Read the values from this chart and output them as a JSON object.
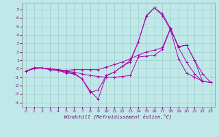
{
  "xlabel": "Windchill (Refroidissement éolien,°C)",
  "background_color": "#c0e8e8",
  "grid_color": "#a0cccc",
  "line_color": "#aa00aa",
  "ylim": [
    -4.5,
    7.8
  ],
  "xlim": [
    -0.5,
    23.5
  ],
  "yticks": [
    -4,
    -3,
    -2,
    -1,
    0,
    1,
    2,
    3,
    4,
    5,
    6,
    7
  ],
  "xticks": [
    0,
    1,
    2,
    3,
    4,
    5,
    6,
    7,
    8,
    9,
    10,
    11,
    12,
    13,
    14,
    15,
    16,
    17,
    18,
    19,
    20,
    21,
    22,
    23
  ],
  "lines": [
    {
      "x": [
        0,
        1,
        2,
        3,
        4,
        5,
        6,
        7,
        8,
        9,
        10,
        11,
        12,
        13,
        14,
        15,
        16,
        17,
        18,
        19,
        20,
        21,
        22,
        23
      ],
      "y": [
        -0.3,
        0.1,
        0.1,
        -0.1,
        -0.2,
        -0.4,
        -0.5,
        -1.2,
        -2.8,
        -2.5,
        -0.8,
        -0.4,
        0.3,
        0.8,
        3.2,
        6.3,
        7.2,
        6.5,
        4.8,
        2.5,
        0.8,
        -0.6,
        -1.5,
        -1.6
      ]
    },
    {
      "x": [
        0,
        1,
        2,
        3,
        4,
        5,
        6,
        7,
        8,
        9,
        10,
        11,
        12,
        13,
        14,
        15,
        16,
        17,
        18,
        19,
        20,
        21,
        22,
        23
      ],
      "y": [
        -0.3,
        0.1,
        0.1,
        -0.1,
        -0.2,
        -0.5,
        -0.6,
        -1.2,
        -2.6,
        -3.6,
        -0.8,
        -0.4,
        0.3,
        1.0,
        3.2,
        6.2,
        7.2,
        6.3,
        4.6,
        1.2,
        -0.5,
        -1.0,
        -1.5,
        -1.6
      ]
    },
    {
      "x": [
        0,
        1,
        2,
        3,
        4,
        5,
        6,
        7,
        8,
        9,
        10,
        11,
        12,
        13,
        14,
        15,
        16,
        17,
        18,
        19,
        20,
        21,
        22,
        23
      ],
      "y": [
        -0.3,
        0.1,
        0.1,
        0.0,
        -0.1,
        -0.2,
        -0.1,
        -0.1,
        -0.1,
        -0.1,
        0.2,
        0.5,
        0.8,
        1.2,
        1.6,
        2.0,
        2.2,
        2.5,
        4.8,
        2.6,
        2.8,
        1.0,
        -0.6,
        -1.6
      ]
    },
    {
      "x": [
        0,
        1,
        2,
        3,
        4,
        5,
        6,
        7,
        8,
        9,
        10,
        11,
        12,
        13,
        14,
        15,
        16,
        17,
        18,
        19,
        20,
        21,
        22,
        23
      ],
      "y": [
        -0.3,
        0.0,
        0.1,
        0.0,
        -0.1,
        -0.3,
        -0.4,
        -0.6,
        -0.8,
        -0.9,
        -1.0,
        -1.0,
        -0.9,
        -0.8,
        1.4,
        1.5,
        1.6,
        2.3,
        4.7,
        2.6,
        2.8,
        1.0,
        -1.5,
        -1.6
      ]
    }
  ]
}
